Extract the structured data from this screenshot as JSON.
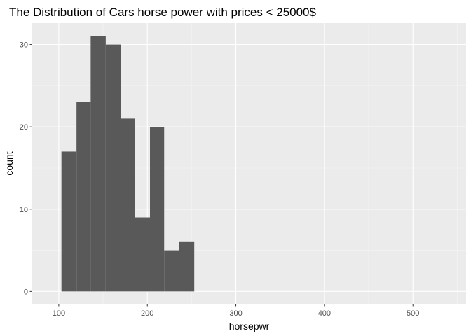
{
  "chart_data": {
    "type": "bar",
    "title": "The Distribution of Cars horse power with prices < 25000$",
    "xlabel": "horsepwr",
    "ylabel": "count",
    "xlim": [
      70,
      560
    ],
    "ylim": [
      -1.5,
      32.6
    ],
    "x_ticks": [
      100,
      200,
      300,
      400,
      500
    ],
    "y_ticks": [
      0,
      10,
      20,
      30
    ],
    "x_tick_labels": [
      "100",
      "200",
      "300",
      "400",
      "500"
    ],
    "y_tick_labels": [
      "0",
      "10",
      "20",
      "30"
    ],
    "grid": true,
    "bins": [
      {
        "x0": 103,
        "x1": 120,
        "count": 17
      },
      {
        "x0": 120,
        "x1": 136,
        "count": 23
      },
      {
        "x0": 136,
        "x1": 153,
        "count": 31
      },
      {
        "x0": 153,
        "x1": 170,
        "count": 30
      },
      {
        "x0": 170,
        "x1": 186,
        "count": 21
      },
      {
        "x0": 186,
        "x1": 203,
        "count": 9
      },
      {
        "x0": 203,
        "x1": 219,
        "count": 20
      },
      {
        "x0": 219,
        "x1": 236,
        "count": 5
      },
      {
        "x0": 236,
        "x1": 253,
        "count": 6
      }
    ],
    "colors": {
      "panel": "#ebebeb",
      "grid_major": "#ffffff",
      "grid_minor": "#f5f5f5",
      "bar": "#595959",
      "tick": "#333333"
    }
  }
}
